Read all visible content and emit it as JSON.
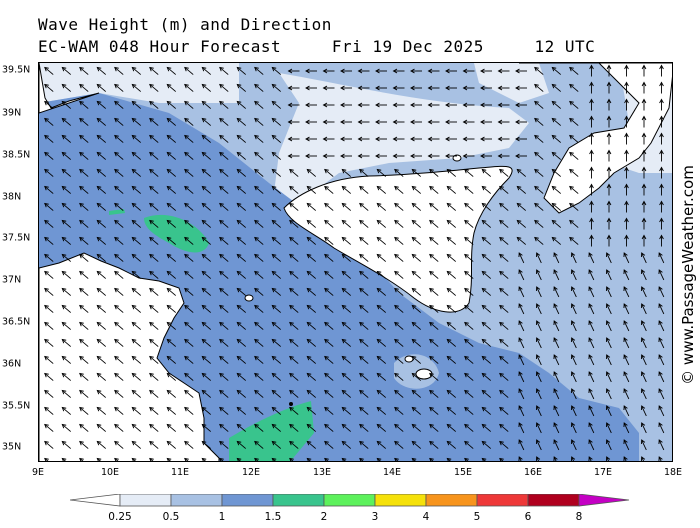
{
  "header": {
    "title": "Wave Height (m) and Direction",
    "subtitle": "EC-WAM 048 Hour Forecast     Fri 19 Dec 2025     12 UTC"
  },
  "watermark": "© www.PassageWeather.com",
  "axes": {
    "lat_labels": [
      "39.5N",
      "39N",
      "38.5N",
      "38N",
      "37.5N",
      "37N",
      "36.5N",
      "36N",
      "35.5N",
      "35N"
    ],
    "lon_labels": [
      "9E",
      "10E",
      "11E",
      "12E",
      "13E",
      "14E",
      "15E",
      "16E",
      "17E",
      "18E"
    ]
  },
  "legend": {
    "labels": [
      "0.25",
      "0.5",
      "1",
      "1.5",
      "2",
      "3",
      "4",
      "5",
      "6",
      "8"
    ],
    "colors": [
      "#ffffff",
      "#e5ecf6",
      "#a8c1e3",
      "#6f96d3",
      "#39c48d",
      "#5df15c",
      "#f5e10a",
      "#f7941d",
      "#ee3838",
      "#b0001e",
      "#c400c4"
    ]
  },
  "map_colors": {
    "sea_low": "#e5ecf6",
    "sea_mid": "#a8c1e3",
    "sea_high": "#6f96d3",
    "sea_peak": "#39c48d",
    "land": "#ffffff"
  },
  "wave_direction": "north-west dominant, northward near eastern coast, westward north of Sicily"
}
